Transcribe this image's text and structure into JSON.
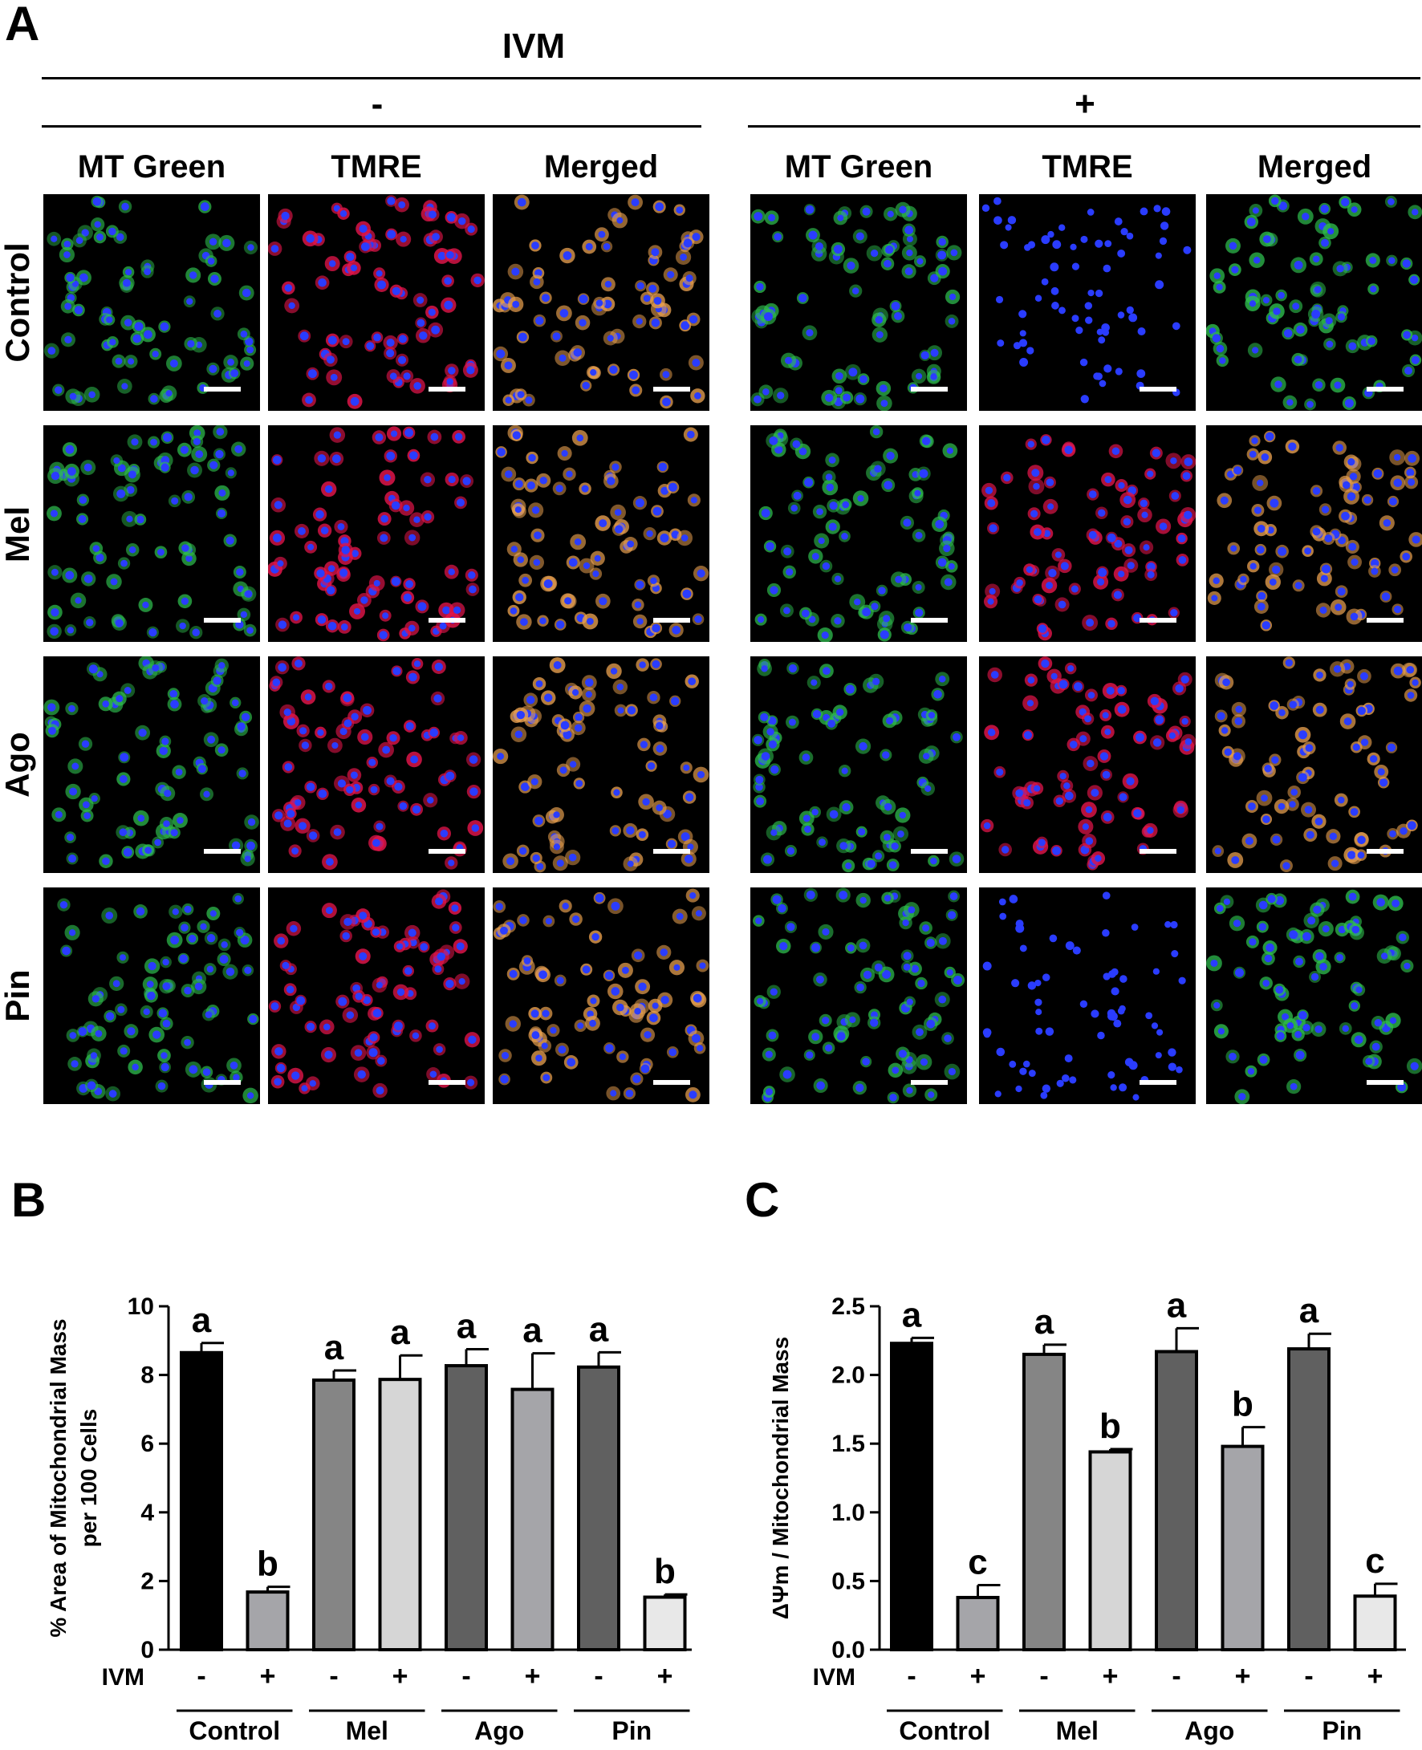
{
  "panelA": {
    "letter": "A",
    "treatment": "IVM",
    "groups": [
      {
        "sign": "-",
        "columns": [
          "MT Green",
          "TMRE",
          "Merged"
        ]
      },
      {
        "sign": "+",
        "columns": [
          "MT Green",
          "TMRE",
          "Merged"
        ]
      }
    ],
    "rows": [
      "Control",
      "Mel",
      "Ago",
      "Pin"
    ]
  },
  "colors": {
    "nucleus": "#2a3cff",
    "mito_green": "#2fbf4f",
    "tmre_red": "#e0154a",
    "merged_orange": "#e8a050"
  },
  "chart_data": [
    {
      "panel": "B",
      "type": "bar",
      "ylabel_lines": [
        "% Area of Mitochondrial Mass",
        "per 100 Cells"
      ],
      "ylim": [
        0,
        10
      ],
      "yticks": [
        "0",
        "2",
        "4",
        "6",
        "8",
        "10"
      ],
      "treatment_label": "IVM",
      "groups": [
        "Control",
        "Mel",
        "Ago",
        "Pin"
      ],
      "bars": [
        {
          "group": "Control",
          "ivm": "-",
          "value": 8.65,
          "error": 0.28,
          "letter": "a",
          "fill": "#000000"
        },
        {
          "group": "Control",
          "ivm": "+",
          "value": 1.68,
          "error": 0.15,
          "letter": "b",
          "fill": "#a5a5a9"
        },
        {
          "group": "Mel",
          "ivm": "-",
          "value": 7.85,
          "error": 0.28,
          "letter": "a",
          "fill": "#858585"
        },
        {
          "group": "Mel",
          "ivm": "+",
          "value": 7.87,
          "error": 0.7,
          "letter": "a",
          "fill": "#d6d6d6"
        },
        {
          "group": "Ago",
          "ivm": "-",
          "value": 8.27,
          "error": 0.48,
          "letter": "a",
          "fill": "#606060"
        },
        {
          "group": "Ago",
          "ivm": "+",
          "value": 7.58,
          "error": 1.05,
          "letter": "a",
          "fill": "#a5a5a9"
        },
        {
          "group": "Pin",
          "ivm": "-",
          "value": 8.23,
          "error": 0.43,
          "letter": "a",
          "fill": "#606060"
        },
        {
          "group": "Pin",
          "ivm": "+",
          "value": 1.53,
          "error": 0.08,
          "letter": "b",
          "fill": "#e8e8e8"
        }
      ]
    },
    {
      "panel": "C",
      "type": "bar",
      "ylabel_lines": [
        "ΔΨm / Mitochondrial Mass"
      ],
      "ylim": [
        0,
        2.5
      ],
      "yticks": [
        "0.0",
        "0.5",
        "1.0",
        "1.5",
        "2.0",
        "2.5"
      ],
      "treatment_label": "IVM",
      "groups": [
        "Control",
        "Mel",
        "Ago",
        "Pin"
      ],
      "bars": [
        {
          "group": "Control",
          "ivm": "-",
          "value": 2.23,
          "error": 0.04,
          "letter": "a",
          "fill": "#000000"
        },
        {
          "group": "Control",
          "ivm": "+",
          "value": 0.38,
          "error": 0.09,
          "letter": "c",
          "fill": "#a5a5a9"
        },
        {
          "group": "Mel",
          "ivm": "-",
          "value": 2.15,
          "error": 0.07,
          "letter": "a",
          "fill": "#858585"
        },
        {
          "group": "Mel",
          "ivm": "+",
          "value": 1.44,
          "error": 0.02,
          "letter": "b",
          "fill": "#d6d6d6"
        },
        {
          "group": "Ago",
          "ivm": "-",
          "value": 2.17,
          "error": 0.17,
          "letter": "a",
          "fill": "#606060"
        },
        {
          "group": "Ago",
          "ivm": "+",
          "value": 1.48,
          "error": 0.14,
          "letter": "b",
          "fill": "#a5a5a9"
        },
        {
          "group": "Pin",
          "ivm": "-",
          "value": 2.19,
          "error": 0.11,
          "letter": "a",
          "fill": "#606060"
        },
        {
          "group": "Pin",
          "ivm": "+",
          "value": 0.39,
          "error": 0.09,
          "letter": "c",
          "fill": "#e8e8e8"
        }
      ]
    }
  ]
}
